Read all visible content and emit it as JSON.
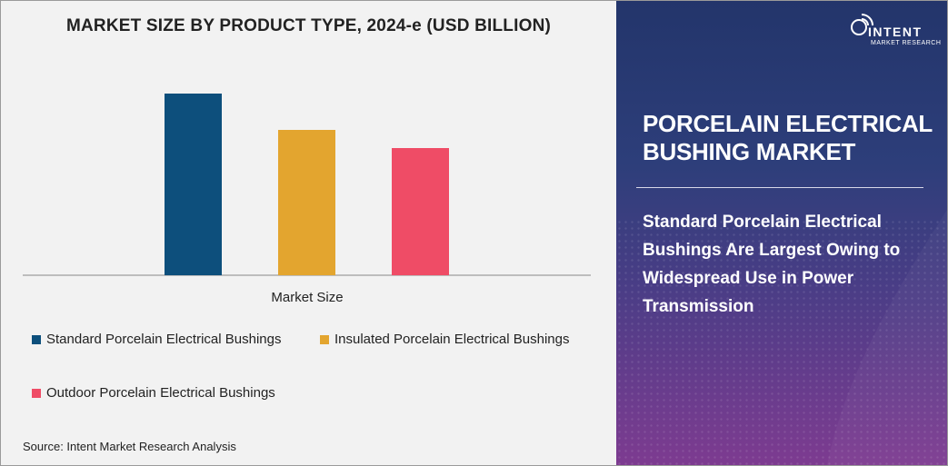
{
  "chart_data": {
    "type": "bar",
    "title": "MARKET SIZE BY PRODUCT TYPE, 2024-e (USD BILLION)",
    "xlabel": "Market Size",
    "ylabel": "",
    "categories": [
      "Market Size"
    ],
    "series": [
      {
        "name": "Standard Porcelain Electrical Bushings",
        "values": [
          1.0
        ],
        "color": "#0d4f7c"
      },
      {
        "name": "Insulated Porcelain Electrical Bushings",
        "values": [
          0.8
        ],
        "color": "#e3a52f"
      },
      {
        "name": "Outdoor Porcelain Electrical Bushings",
        "values": [
          0.7
        ],
        "color": "#ef4c66"
      }
    ],
    "ylim": [
      0,
      1.0
    ],
    "grid": false,
    "legend_position": "bottom"
  },
  "source": "Source: Intent Market Research Analysis",
  "logo": {
    "name": "INTENT",
    "sub": "MARKET RESEARCH",
    "icon": "wifi-signal-icon"
  },
  "panel": {
    "title": "PORCELAIN ELECTRICAL BUSHING MARKET",
    "subtitle": "Standard Porcelain Electrical Bushings Are Largest Owing to Widespread Use in Power Transmission"
  },
  "colors": {
    "panel_top": "#23356b",
    "panel_bottom": "#7d3b90"
  }
}
